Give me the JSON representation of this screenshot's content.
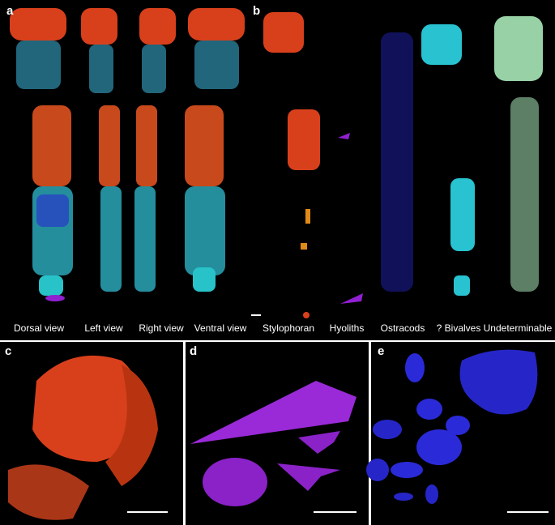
{
  "panels": [
    {
      "letter": "a",
      "labels": [
        "Dorsal view",
        "Left view",
        "Right view",
        "Ventral view"
      ]
    },
    {
      "letter": "b",
      "labels": [
        "Stylophoran",
        "Hyoliths",
        "Ostracods",
        "? Bivalves",
        "Undeterminable"
      ]
    },
    {
      "letter": "c"
    },
    {
      "letter": "d"
    },
    {
      "letter": "e"
    }
  ]
}
